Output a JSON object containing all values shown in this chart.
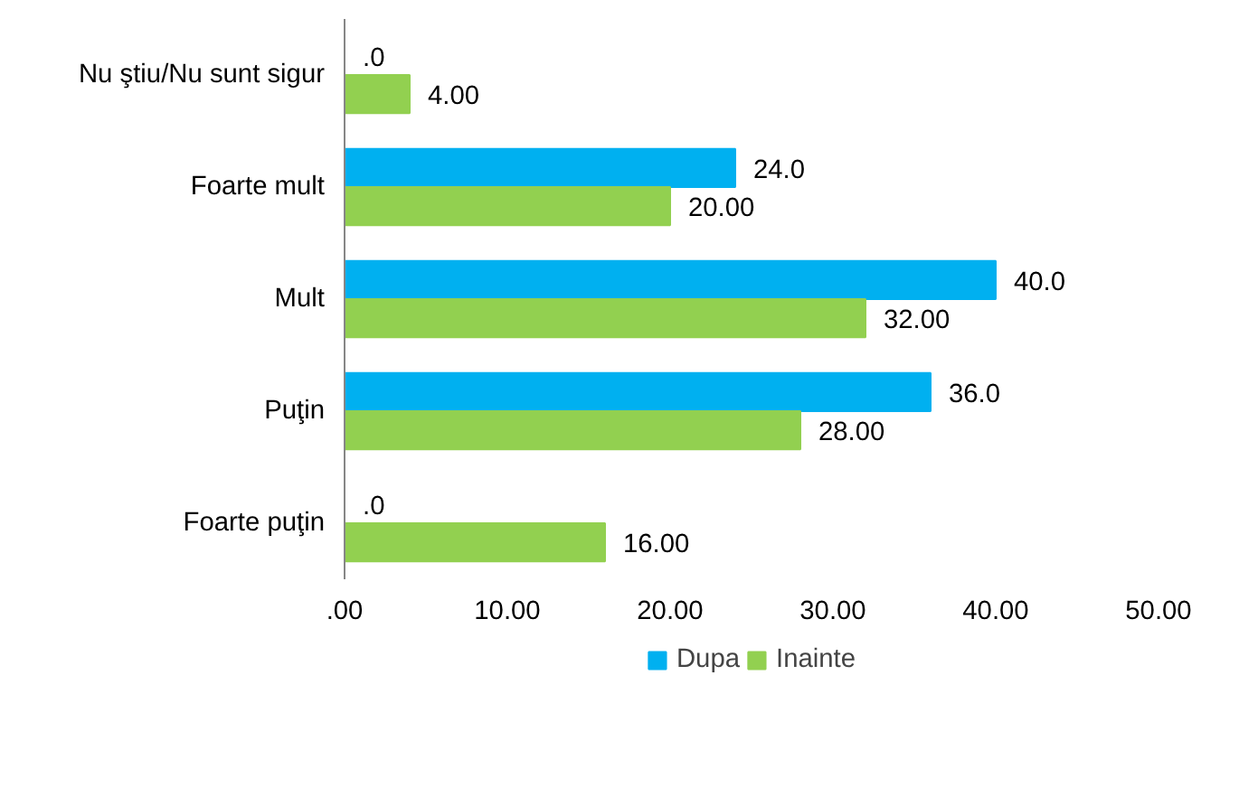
{
  "chart_data": {
    "type": "bar",
    "orientation": "horizontal",
    "categories": [
      "Nu ştiu/Nu sunt sigur",
      "Foarte mult",
      "Mult",
      "Puţin",
      "Foarte puţin"
    ],
    "series": [
      {
        "name": "Dupa",
        "color": "#00b0f0",
        "values": [
          0,
          24,
          40,
          36,
          0
        ],
        "value_labels": [
          ".0",
          "24.0",
          "40.0",
          "36.0",
          ".0"
        ]
      },
      {
        "name": "Inainte",
        "color": "#92d050",
        "values": [
          4,
          20,
          32,
          28,
          16
        ],
        "value_labels": [
          "4.00",
          "20.00",
          "32.00",
          "28.00",
          "16.00"
        ]
      }
    ],
    "xlim": [
      0,
      50
    ],
    "xticks": [
      {
        "value": 0,
        "label": ".00"
      },
      {
        "value": 10,
        "label": "10.00"
      },
      {
        "value": 20,
        "label": "20.00"
      },
      {
        "value": 30,
        "label": "30.00"
      },
      {
        "value": 40,
        "label": "40.00"
      },
      {
        "value": 50,
        "label": "50.00"
      }
    ],
    "grid": false,
    "legend": "bottom"
  }
}
